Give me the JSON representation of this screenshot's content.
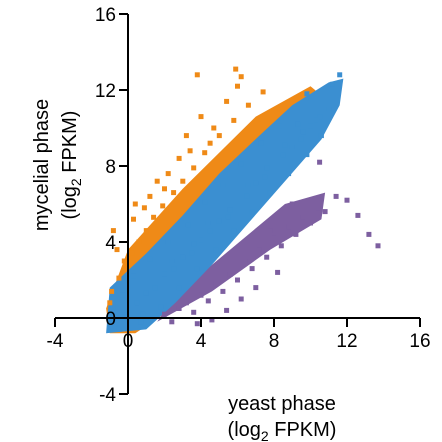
{
  "chart_data": {
    "type": "scatter",
    "title": "",
    "xlabel": {
      "main": "yeast phase",
      "sub_prefix": "(log",
      "sub_script": "2",
      "sub_suffix": " FPKM)"
    },
    "ylabel": {
      "main": "mycelial phase",
      "sub_prefix": "(log",
      "sub_script": "2",
      "sub_suffix": " FPKM)"
    },
    "xlim": [
      -4,
      16
    ],
    "ylim": [
      -4,
      16
    ],
    "x_ticks": [
      -4,
      0,
      4,
      8,
      12,
      16
    ],
    "y_ticks": [
      -4,
      0,
      4,
      8,
      12,
      16
    ],
    "x_tick_labels": [
      "-4",
      "0",
      "4",
      "8",
      "12",
      "16"
    ],
    "y_tick_labels": [
      "-4",
      "0",
      "4",
      "8",
      "12",
      "16"
    ],
    "grid": false,
    "legend": "none",
    "series": [
      {
        "color": "#3b8fd1",
        "points": [
          [
            -0.5,
            -0.6
          ],
          [
            0,
            0
          ],
          [
            0.5,
            0.8
          ],
          [
            1,
            1.3
          ],
          [
            1.5,
            1.6
          ],
          [
            2,
            2.3
          ],
          [
            2.5,
            2.6
          ],
          [
            3,
            3.2
          ],
          [
            3.5,
            3.4
          ],
          [
            4,
            4.1
          ],
          [
            4.5,
            4.6
          ],
          [
            5,
            5.1
          ],
          [
            5.5,
            5.3
          ],
          [
            6,
            6.0
          ],
          [
            6.5,
            6.4
          ],
          [
            7,
            7.1
          ],
          [
            7.5,
            7.4
          ],
          [
            8,
            8.0
          ],
          [
            8.5,
            8.6
          ],
          [
            9,
            9.0
          ],
          [
            9.5,
            9.4
          ],
          [
            10,
            10.1
          ],
          [
            10.5,
            10.6
          ],
          [
            11,
            11.0
          ],
          [
            11.2,
            12.3
          ],
          [
            11.6,
            12.8
          ],
          [
            9.8,
            11.8
          ],
          [
            9.3,
            10.2
          ],
          [
            -0.8,
            0.6
          ],
          [
            -0.3,
            1.2
          ],
          [
            0.3,
            2.2
          ],
          [
            1.2,
            3.1
          ],
          [
            2.2,
            4.0
          ],
          [
            3.3,
            4.9
          ],
          [
            4.2,
            6.1
          ],
          [
            5.2,
            7.0
          ],
          [
            6.2,
            8.1
          ],
          [
            7.3,
            9.2
          ],
          [
            8.3,
            10.1
          ],
          [
            0.7,
            -0.2
          ],
          [
            1.8,
            0.6
          ],
          [
            2.8,
            1.6
          ],
          [
            3.8,
            2.6
          ],
          [
            4.8,
            3.6
          ],
          [
            5.8,
            4.6
          ],
          [
            6.8,
            5.6
          ],
          [
            7.8,
            6.6
          ],
          [
            8.8,
            7.6
          ],
          [
            9.8,
            8.6
          ],
          [
            10.6,
            9.6
          ],
          [
            -0.2,
            0.3
          ],
          [
            0.8,
            0.2
          ],
          [
            2.4,
            3.0
          ],
          [
            3.6,
            3.9
          ],
          [
            4.4,
            5.0
          ],
          [
            5.6,
            5.7
          ],
          [
            6.6,
            7.0
          ],
          [
            7.6,
            7.9
          ],
          [
            8.6,
            9.1
          ],
          [
            9.6,
            9.8
          ],
          [
            10.3,
            10.4
          ]
        ]
      },
      {
        "color": "#ef8a17",
        "points": [
          [
            -1,
            0.8
          ],
          [
            -0.9,
            1.4
          ],
          [
            -0.5,
            2.1
          ],
          [
            -0.2,
            3.0
          ],
          [
            0.2,
            3.4
          ],
          [
            0.6,
            4.0
          ],
          [
            1,
            4.6
          ],
          [
            1.4,
            5.3
          ],
          [
            1.9,
            5.9
          ],
          [
            2.5,
            6.6
          ],
          [
            3,
            7.2
          ],
          [
            3.6,
            7.9
          ],
          [
            4.2,
            8.7
          ],
          [
            5,
            9.6
          ],
          [
            5.8,
            10.4
          ],
          [
            6.6,
            11.2
          ],
          [
            7.4,
            11.9
          ],
          [
            -0.6,
            3.6
          ],
          [
            0.3,
            5.2
          ],
          [
            1.2,
            6.4
          ],
          [
            2.2,
            7.6
          ],
          [
            3.4,
            8.8
          ],
          [
            4.7,
            10.0
          ],
          [
            5.4,
            11.4
          ],
          [
            6.0,
            12.2
          ],
          [
            6.2,
            12.7
          ],
          [
            5.9,
            13.1
          ],
          [
            3.8,
            12.8
          ],
          [
            4.5,
            9.2
          ],
          [
            2.8,
            8.4
          ],
          [
            1.6,
            7.2
          ],
          [
            0.4,
            6.0
          ],
          [
            -0.8,
            4.6
          ],
          [
            0.9,
            5.8
          ],
          [
            2.0,
            6.8
          ],
          [
            3.2,
            9.6
          ],
          [
            4.0,
            10.6
          ]
        ]
      },
      {
        "color": "#7d5fa0",
        "points": [
          [
            2,
            0.2
          ],
          [
            2.4,
            -0.2
          ],
          [
            2.8,
            0.5
          ],
          [
            3.2,
            0.8
          ],
          [
            3.6,
            0.3
          ],
          [
            4,
            1.2
          ],
          [
            4.4,
            0.9
          ],
          [
            4.8,
            1.8
          ],
          [
            5.2,
            1.4
          ],
          [
            5.6,
            2.3
          ],
          [
            6,
            2.0
          ],
          [
            6.4,
            3.0
          ],
          [
            6.8,
            2.6
          ],
          [
            7.2,
            3.6
          ],
          [
            7.6,
            3.2
          ],
          [
            8,
            4.2
          ],
          [
            8.4,
            3.8
          ],
          [
            8.8,
            4.8
          ],
          [
            9.2,
            4.4
          ],
          [
            9.6,
            5.3
          ],
          [
            10,
            5.0
          ],
          [
            10.4,
            5.8
          ],
          [
            10.8,
            5.6
          ],
          [
            11.4,
            6.4
          ],
          [
            12,
            6.2
          ],
          [
            12.6,
            5.4
          ],
          [
            13.2,
            4.4
          ],
          [
            13.7,
            3.8
          ],
          [
            10.5,
            8.2
          ],
          [
            8.2,
            2.4
          ],
          [
            7.0,
            1.6
          ],
          [
            6.2,
            1.0
          ],
          [
            5.4,
            0.4
          ],
          [
            4.6,
            -0.1
          ],
          [
            3.8,
            -0.3
          ],
          [
            9.0,
            6.0
          ],
          [
            7.8,
            4.6
          ]
        ]
      }
    ]
  }
}
